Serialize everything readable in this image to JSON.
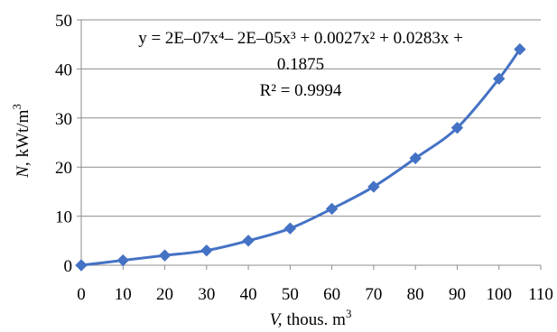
{
  "chart_data": {
    "type": "scatter",
    "title": "",
    "xlabel": {
      "var": "V,",
      "unit": "thous. m",
      "sup": "3"
    },
    "ylabel": {
      "var": "N,",
      "unit": "kWt/m",
      "sup": "3"
    },
    "xlim": [
      0,
      110
    ],
    "ylim": [
      0,
      50
    ],
    "x_ticks": [
      0,
      10,
      20,
      30,
      40,
      50,
      60,
      70,
      80,
      90,
      100,
      110
    ],
    "y_ticks": [
      0,
      10,
      20,
      30,
      40,
      50
    ],
    "grid": "horizontal",
    "colors": {
      "series": "#4472C4",
      "grid": "#8c8c8c",
      "axis": "#8c8c8c"
    },
    "series": [
      {
        "marker": "diamond",
        "x": [
          0,
          10,
          20,
          30,
          40,
          50,
          60,
          70,
          80,
          90,
          100,
          105
        ],
        "y": [
          0,
          1,
          2,
          3,
          5,
          7.5,
          11.5,
          16,
          21.8,
          28,
          38,
          44
        ]
      }
    ],
    "trendline": {
      "type": "polynomial",
      "order": 4,
      "equation_line1": "y = 2E–07x⁴– 2E–05x³ + 0.0027x² + 0.0283x +",
      "equation_line2": "0.1875",
      "r_squared": "R² = 0.9994"
    }
  }
}
